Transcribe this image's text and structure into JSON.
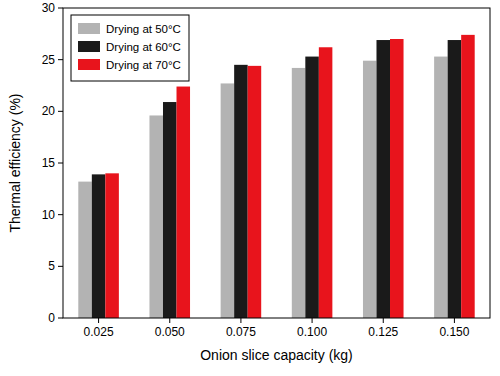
{
  "chart_data": {
    "type": "bar",
    "x_label": "Onion slice capacity (kg)",
    "y_label": "Thermal efficiency (%)",
    "categories": [
      "0.025",
      "0.050",
      "0.075",
      "0.100",
      "0.125",
      "0.150"
    ],
    "series": [
      {
        "name": "Drying at 50°C",
        "color": "#b3b3b3",
        "values": [
          13.2,
          19.6,
          22.7,
          24.2,
          24.9,
          25.3
        ]
      },
      {
        "name": "Drying at 60°C",
        "color": "#1a1a1a",
        "values": [
          13.9,
          20.9,
          24.5,
          25.3,
          26.9,
          26.9
        ]
      },
      {
        "name": "Drying at 70°C",
        "color": "#e8141c",
        "values": [
          14.0,
          22.4,
          24.4,
          26.2,
          27.0,
          27.4
        ]
      }
    ],
    "ylim": [
      0,
      30
    ],
    "yticks": [
      0,
      5,
      10,
      15,
      20,
      25,
      30
    ],
    "grid": false,
    "legend": "top-left"
  }
}
